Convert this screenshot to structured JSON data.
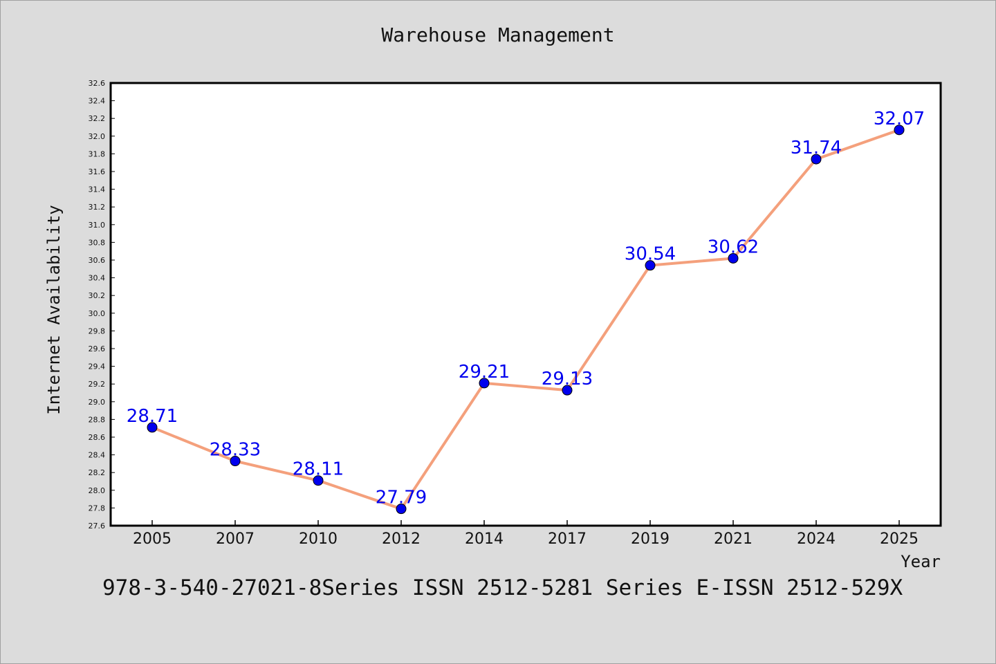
{
  "colors": {
    "line": "#f4a07c",
    "marker": "#0000ee",
    "data_label": "#0000ee",
    "plot_bg": "#ffffff",
    "page_bg": "#dcdcdc"
  },
  "footer": {
    "text": "978-3-540-27021-8Series ISSN 2512-5281 Series E-ISSN 2512-529X"
  },
  "chart_data": {
    "type": "line",
    "title": "Warehouse Management",
    "xlabel": "Year",
    "ylabel": "Internet Availability",
    "categories": [
      "2005",
      "2007",
      "2010",
      "2012",
      "2014",
      "2017",
      "2019",
      "2021",
      "2024",
      "2025"
    ],
    "values": [
      28.71,
      28.33,
      28.11,
      27.79,
      29.21,
      29.13,
      30.54,
      30.62,
      31.74,
      32.07
    ],
    "data_labels": [
      "28.71",
      "28.33",
      "28.11",
      "27.79",
      "29.21",
      "29.13",
      "30.54",
      "30.62",
      "31.74",
      "32.07"
    ],
    "ylim": [
      27.6,
      32.6
    ],
    "yticks": [
      "27.6",
      "27.8",
      "28.0",
      "28.2",
      "28.4",
      "28.6",
      "28.8",
      "29.0",
      "29.2",
      "29.4",
      "29.6",
      "29.8",
      "30.0",
      "30.2",
      "30.4",
      "30.6",
      "30.8",
      "31.0",
      "31.2",
      "31.4",
      "31.6",
      "31.8",
      "32.0",
      "32.2",
      "32.4",
      "32.6"
    ],
    "grid": false,
    "legend": "none"
  }
}
